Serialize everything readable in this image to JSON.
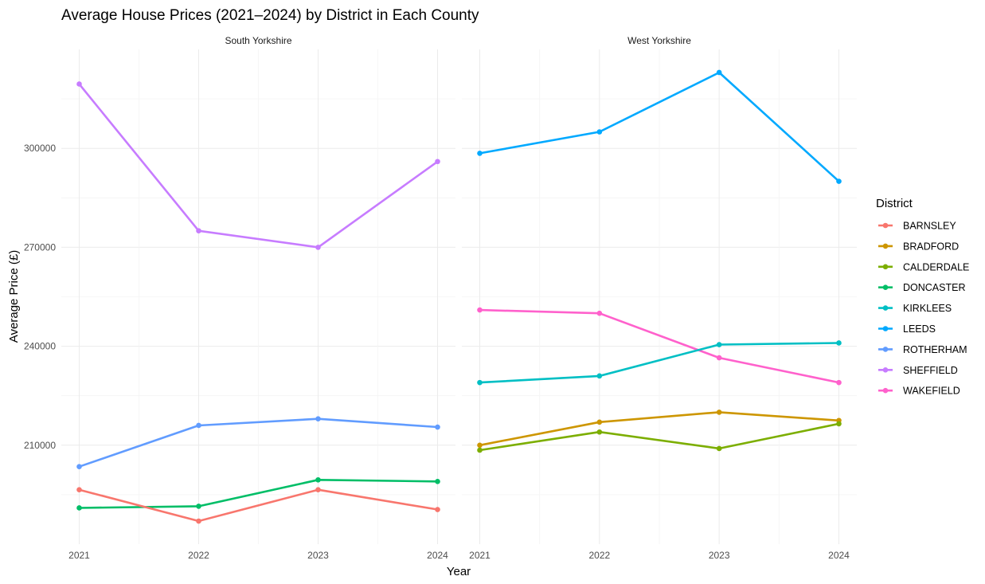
{
  "chart_data": {
    "type": "line",
    "title": "Average House Prices (2021–2024) by District in Each County",
    "xlabel": "Year",
    "ylabel": "Average Price (£)",
    "x": [
      2021,
      2022,
      2023,
      2024
    ],
    "x_tick_labels": [
      "2021",
      "2022",
      "2023",
      "2024"
    ],
    "ylim": [
      180000,
      330000
    ],
    "y_ticks": [
      210000,
      240000,
      270000,
      300000
    ],
    "y_tick_labels": [
      "210000",
      "240000",
      "270000",
      "300000"
    ],
    "grid": true,
    "legend_title": "District",
    "legend_position": "right",
    "legend": [
      {
        "name": "BARNSLEY",
        "color": "#F8766D"
      },
      {
        "name": "BRADFORD",
        "color": "#CD9600"
      },
      {
        "name": "CALDERDALE",
        "color": "#7CAE00"
      },
      {
        "name": "DONCASTER",
        "color": "#00BE67"
      },
      {
        "name": "KIRKLEES",
        "color": "#00BFC4"
      },
      {
        "name": "LEEDS",
        "color": "#00A9FF"
      },
      {
        "name": "ROTHERHAM",
        "color": "#619CFF"
      },
      {
        "name": "SHEFFIELD",
        "color": "#C77CFF"
      },
      {
        "name": "WAKEFIELD",
        "color": "#FF61CC"
      }
    ],
    "panels": [
      {
        "label": "South Yorkshire",
        "series": [
          {
            "name": "SHEFFIELD",
            "color": "#C77CFF",
            "values": [
              319500,
              275000,
              270000,
              296000
            ]
          },
          {
            "name": "ROTHERHAM",
            "color": "#619CFF",
            "values": [
              203500,
              216000,
              218000,
              215500
            ]
          },
          {
            "name": "DONCASTER",
            "color": "#00BE67",
            "values": [
              191000,
              191500,
              199500,
              199000
            ]
          },
          {
            "name": "BARNSLEY",
            "color": "#F8766D",
            "values": [
              196500,
              187000,
              196500,
              190500
            ]
          }
        ]
      },
      {
        "label": "West Yorkshire",
        "series": [
          {
            "name": "LEEDS",
            "color": "#00A9FF",
            "values": [
              298500,
              305000,
              323000,
              290000
            ]
          },
          {
            "name": "WAKEFIELD",
            "color": "#FF61CC",
            "values": [
              251000,
              250000,
              236500,
              229000
            ]
          },
          {
            "name": "KIRKLEES",
            "color": "#00BFC4",
            "values": [
              229000,
              231000,
              240500,
              241000
            ]
          },
          {
            "name": "BRADFORD",
            "color": "#CD9600",
            "values": [
              210000,
              217000,
              220000,
              217500
            ]
          },
          {
            "name": "CALDERDALE",
            "color": "#7CAE00",
            "values": [
              208500,
              214000,
              209000,
              216500
            ]
          }
        ]
      }
    ]
  }
}
